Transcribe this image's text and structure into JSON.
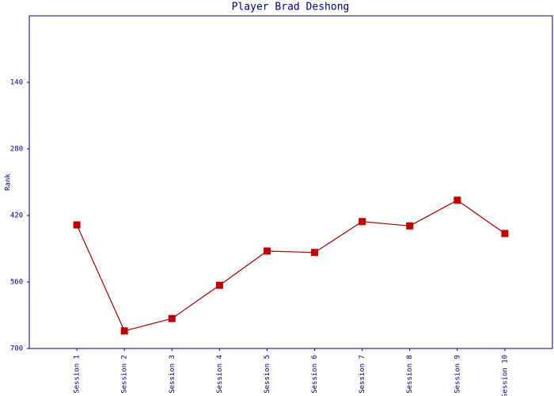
{
  "chart_data": {
    "type": "line",
    "title": "Player Brad Deshong",
    "y_label": "Rank",
    "categories": [
      "Session 1",
      "Session 2",
      "Session 3",
      "Session 4",
      "Session 5",
      "Session 6",
      "Session 7",
      "Session 8",
      "Session 9",
      "Session 10"
    ],
    "series": [
      {
        "name": "Rank",
        "color": "#c00000",
        "values": [
          440,
          663,
          637,
          567,
          495,
          498,
          433,
          442,
          388,
          458
        ]
      }
    ],
    "ylim": [
      0,
      700
    ],
    "yticks": [
      140,
      280,
      420,
      560,
      700
    ],
    "y_reversed": true,
    "grid": false
  }
}
